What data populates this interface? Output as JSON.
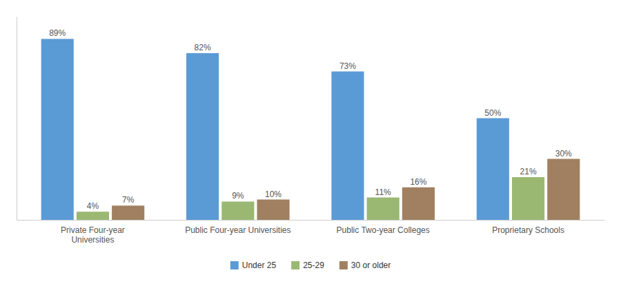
{
  "chart_data": {
    "type": "bar",
    "categories": [
      "Private Four-year\nUniversities",
      "Public Four-year Universities",
      "Public Two-year Colleges",
      "Proprietary Schools"
    ],
    "series": [
      {
        "name": "Under 25",
        "color": "#5B9BD5",
        "values": [
          89,
          82,
          73,
          50
        ],
        "value_labels": [
          "89%",
          "82%",
          "73%",
          "50%"
        ]
      },
      {
        "name": "25-29",
        "color": "#9BB872",
        "values": [
          4,
          9,
          11,
          21
        ],
        "value_labels": [
          "4%",
          "9%",
          "11%",
          "21%"
        ]
      },
      {
        "name": "30 or older",
        "color": "#A08060",
        "values": [
          7,
          10,
          16,
          30
        ],
        "value_labels": [
          "7%",
          "10%",
          "16%",
          "30%"
        ]
      }
    ],
    "ylim": [
      0,
      100
    ],
    "yticks": [],
    "grid": false,
    "legend": "bottom",
    "data_labels": true,
    "tick_labels": "x"
  }
}
